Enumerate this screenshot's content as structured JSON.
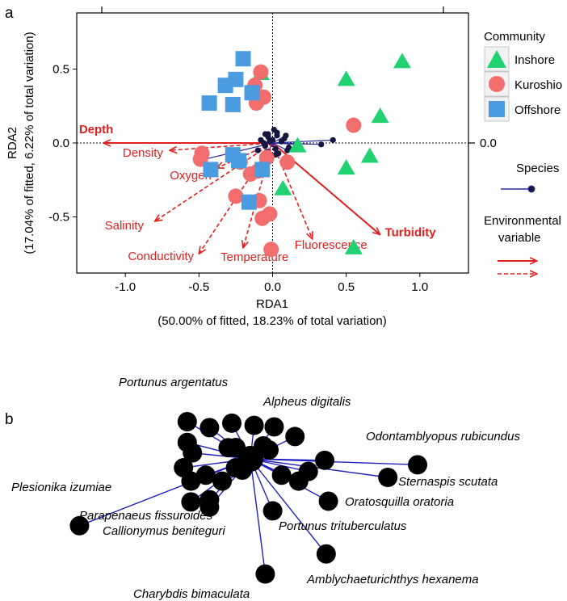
{
  "panel_a": {
    "label": "a",
    "chart_data": {
      "type": "scatter",
      "title": "",
      "xlabel": "RDA1",
      "xlabel2": "(50.00% of fitted, 18.23% of total variation)",
      "ylabel": "RDA2",
      "ylabel2": "(17.04% of fitted, 6.22% of total variation)",
      "xlim": [
        -1.33,
        1.33
      ],
      "ylim": [
        -0.88,
        0.88
      ],
      "x_ticks": [
        -1.0,
        -0.5,
        0.0,
        0.5,
        1.0
      ],
      "x_tick_labels": [
        "-1.0",
        "-0.5",
        "0.0",
        "0.5",
        "1.0"
      ],
      "y_ticks": [
        -0.5,
        0.0,
        0.5
      ],
      "y_tick_labels": [
        "-0.5",
        "0.0",
        "0.5"
      ],
      "right_tick_label": "0.0",
      "top_ticks": [
        -1.16,
        1.16
      ],
      "grid": false,
      "legend_position": "right",
      "legend": {
        "community_title": "Community",
        "species_label": "Species",
        "env_title": "Environmental variable",
        "env_title_lines": [
          "Environmental",
          "variable"
        ]
      },
      "series": [
        {
          "name": "Inshore",
          "marker": "triangle",
          "color": "#20d272",
          "points": [
            [
              0.5,
              0.43
            ],
            [
              0.88,
              0.55
            ],
            [
              0.73,
              0.18
            ],
            [
              0.66,
              -0.09
            ],
            [
              0.5,
              -0.17
            ],
            [
              0.07,
              -0.31
            ],
            [
              0.55,
              -0.71
            ],
            [
              0.17,
              -0.02
            ],
            [
              -0.08,
              0.47
            ]
          ]
        },
        {
          "name": "Kuroshio",
          "marker": "circle",
          "color": "#f26d6d",
          "points": [
            [
              -0.08,
              0.48
            ],
            [
              -0.12,
              0.39
            ],
            [
              -0.06,
              0.31
            ],
            [
              -0.11,
              0.27
            ],
            [
              0.55,
              0.12
            ],
            [
              -0.48,
              -0.07
            ],
            [
              -0.22,
              -0.13
            ],
            [
              -0.15,
              -0.21
            ],
            [
              -0.1,
              -0.19
            ],
            [
              -0.25,
              -0.36
            ],
            [
              -0.09,
              -0.39
            ],
            [
              -0.02,
              -0.48
            ],
            [
              -0.07,
              -0.51
            ],
            [
              0.1,
              -0.13
            ],
            [
              -0.01,
              -0.72
            ],
            [
              -0.49,
              -0.11
            ],
            [
              -0.04,
              -0.1
            ]
          ]
        },
        {
          "name": "Offshore",
          "marker": "square",
          "color": "#4a9be0",
          "points": [
            [
              -0.2,
              0.57
            ],
            [
              -0.32,
              0.39
            ],
            [
              -0.25,
              0.43
            ],
            [
              -0.43,
              0.27
            ],
            [
              -0.27,
              0.26
            ],
            [
              -0.14,
              0.34
            ],
            [
              -0.42,
              -0.18
            ],
            [
              -0.27,
              -0.08
            ],
            [
              -0.23,
              -0.12
            ],
            [
              -0.16,
              -0.4
            ],
            [
              -0.07,
              -0.18
            ]
          ]
        }
      ],
      "species_vectors": [
        [
          -0.46,
          -0.11
        ],
        [
          0.41,
          0.02
        ],
        [
          0.33,
          -0.01
        ],
        [
          0.16,
          -0.01
        ],
        [
          0.1,
          -0.05
        ],
        [
          -0.07,
          -0.14
        ],
        [
          -0.05,
          0.06
        ],
        [
          0.03,
          0.07
        ],
        [
          -0.06,
          0.0
        ],
        [
          0.02,
          -0.08
        ],
        [
          0.09,
          0.05
        ],
        [
          -0.03,
          0.04
        ]
      ],
      "species_vector_color": "#2b2ba0",
      "env_vectors": [
        {
          "name": "Depth",
          "x": -1.15,
          "y": 0.0,
          "style": "solid",
          "bold": true
        },
        {
          "name": "Turbidity",
          "x": 0.73,
          "y": -0.62,
          "style": "solid",
          "bold": true
        },
        {
          "name": "Density",
          "x": -0.7,
          "y": -0.05,
          "style": "dashed",
          "bold": false
        },
        {
          "name": "Oxygen",
          "x": -0.38,
          "y": -0.17,
          "style": "dashed",
          "bold": false
        },
        {
          "name": "Salinity",
          "x": -0.8,
          "y": -0.53,
          "style": "dashed",
          "bold": false
        },
        {
          "name": "Conductivity",
          "x": -0.5,
          "y": -0.75,
          "style": "dashed",
          "bold": false
        },
        {
          "name": "Temperature",
          "x": -0.2,
          "y": -0.71,
          "style": "dashed",
          "bold": false
        },
        {
          "name": "Fluorescence",
          "x": 0.27,
          "y": -0.65,
          "style": "dashed",
          "bold": false
        }
      ],
      "env_vector_color": "#e02020"
    }
  },
  "panel_b": {
    "label": "b",
    "chart_data": {
      "type": "scatter",
      "title": "",
      "center": [
        0,
        0
      ],
      "vector_color": "#2020c0",
      "species": [
        {
          "name": "Portunus argentatus",
          "x": -0.85,
          "y": 0.5,
          "labeled": true
        },
        {
          "name": "Alpheus digitalis",
          "x": 0.6,
          "y": 0.3,
          "labeled": true
        },
        {
          "name": "Odontamblyopus rubicundus",
          "x": 2.25,
          "y": -0.08,
          "labeled": true
        },
        {
          "name": "Sternaspis scutata",
          "x": 1.85,
          "y": -0.25,
          "labeled": true
        },
        {
          "name": "Plesionika izumiae",
          "x": -2.3,
          "y": -0.9,
          "labeled": true
        },
        {
          "name": "Oratosquilla oratoria",
          "x": 1.05,
          "y": -0.57,
          "labeled": true
        },
        {
          "name": "Parapenaeus fissuroides",
          "x": -0.55,
          "y": -0.65,
          "labeled": true
        },
        {
          "name": "Callionymus beniteguri",
          "x": -0.8,
          "y": -0.58,
          "labeled": true
        },
        {
          "name": "Portunus trituberculatus",
          "x": 0.3,
          "y": -0.7,
          "labeled": true
        },
        {
          "name": "Amblychaeturichthys hexanema",
          "x": 1.02,
          "y": -1.28,
          "labeled": true
        },
        {
          "name": "Charybdis bimaculata",
          "x": 0.2,
          "y": -1.55,
          "labeled": true
        },
        {
          "name": "",
          "x": -0.55,
          "y": 0.42,
          "labeled": false
        },
        {
          "name": "",
          "x": -0.25,
          "y": 0.48,
          "labeled": false
        },
        {
          "name": "",
          "x": 0.05,
          "y": 0.45,
          "labeled": false
        },
        {
          "name": "",
          "x": 0.32,
          "y": 0.43,
          "labeled": false
        },
        {
          "name": "",
          "x": -0.85,
          "y": 0.22,
          "labeled": false
        },
        {
          "name": "",
          "x": -0.78,
          "y": 0.08,
          "labeled": false
        },
        {
          "name": "",
          "x": -0.9,
          "y": -0.12,
          "labeled": false
        },
        {
          "name": "",
          "x": -0.8,
          "y": -0.3,
          "labeled": false
        },
        {
          "name": "",
          "x": -0.6,
          "y": -0.22,
          "labeled": false
        },
        {
          "name": "",
          "x": -0.38,
          "y": -0.3,
          "labeled": false
        },
        {
          "name": "",
          "x": -0.2,
          "y": -0.12,
          "labeled": false
        },
        {
          "name": "",
          "x": 0.42,
          "y": -0.22,
          "labeled": false
        },
        {
          "name": "",
          "x": 0.65,
          "y": -0.3,
          "labeled": false
        },
        {
          "name": "",
          "x": 0.78,
          "y": -0.17,
          "labeled": false
        },
        {
          "name": "",
          "x": 1.0,
          "y": -0.02,
          "labeled": false
        },
        {
          "name": "",
          "x": -0.55,
          "y": -0.55,
          "labeled": false
        },
        {
          "name": "",
          "x": -0.3,
          "y": 0.15,
          "labeled": false
        },
        {
          "name": "",
          "x": 0.25,
          "y": 0.12,
          "labeled": false
        }
      ]
    }
  }
}
